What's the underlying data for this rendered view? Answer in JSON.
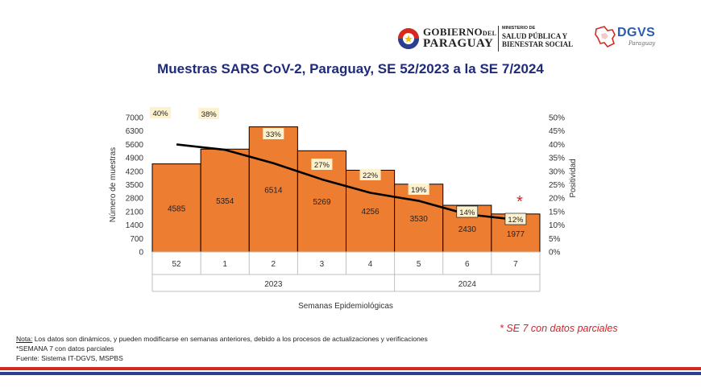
{
  "header": {
    "gov_line1": "GOBIERNO",
    "gov_line1_small": "DEL",
    "gov_line2": "PARAGUAY",
    "ministry_small": "MINISTERIO DE",
    "ministry_line1": "SALUD PÚBLICA Y",
    "ministry_line2": "BIENESTAR SOCIAL",
    "dgvs_title": "DGVS",
    "dgvs_sub": "Paraguay"
  },
  "notes": {
    "nota_label": "Nota:",
    "nota_text": " Los datos son dinámicos, y pueden modificarse en semanas anteriores, debido a los procesos de actualizaciones y verificaciones",
    "semana": "*SEMANA 7 con datos parciales",
    "fuente": "Fuente: Sistema IT-DGVS, MSPBS"
  },
  "partial_note": "* SE 7 con datos parciales",
  "asterisk": "*",
  "colors": {
    "bar": "#ED7D31",
    "line": "#000000",
    "label_bg": "#FDF2D0",
    "title": "#1F2A78",
    "accent_red": "#D4232B"
  },
  "chart_data": {
    "type": "bar",
    "title": "Muestras SARS CoV-2, Paraguay, SE 52/2023 a la SE 7/2024",
    "categories": [
      "52",
      "1",
      "2",
      "3",
      "4",
      "5",
      "6",
      "7"
    ],
    "groups": [
      {
        "label": "2023",
        "from": 0,
        "to": 4
      },
      {
        "label": "2024",
        "from": 5,
        "to": 7
      }
    ],
    "series": [
      {
        "name": "Número de muestras",
        "type": "bar",
        "axis": "left",
        "values": [
          4585,
          5354,
          6514,
          5269,
          4256,
          3530,
          2430,
          1977
        ]
      },
      {
        "name": "Positividad",
        "type": "line",
        "axis": "right",
        "values": [
          40,
          38,
          33,
          27,
          22,
          19,
          14,
          12
        ],
        "labels": [
          "40%",
          "38%",
          "33%",
          "27%",
          "22%",
          "19%",
          "14%",
          "12%"
        ]
      }
    ],
    "xlabel": "Semanas Epidemiológicas",
    "ylabel": "Número de muestras",
    "y2label": "Positividad",
    "ylim": [
      0,
      7000
    ],
    "yticks": [
      0,
      700,
      1400,
      2100,
      2800,
      3500,
      4200,
      4900,
      5600,
      6300,
      7000
    ],
    "y2lim": [
      0,
      50
    ],
    "y2ticks": [
      "0%",
      "5%",
      "10%",
      "15%",
      "20%",
      "25%",
      "30%",
      "35%",
      "40%",
      "45%",
      "50%"
    ],
    "grid": false
  }
}
